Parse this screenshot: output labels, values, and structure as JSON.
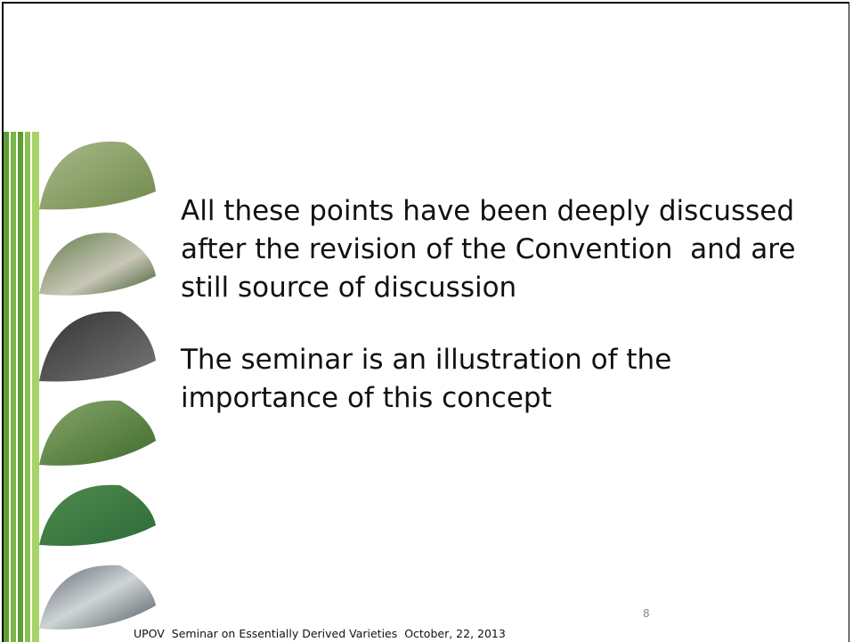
{
  "slide": {
    "paragraphs": [
      [
        "All these points have been deeply discussed",
        "after the revision of the Convention  and are",
        "still source of discussion"
      ],
      [
        "The seminar is an illustration of the",
        "importance of this concept"
      ]
    ],
    "page_number": "8",
    "footer": "UPOV  Seminar on Essentially Derived Varieties  October, 22, 2013"
  }
}
